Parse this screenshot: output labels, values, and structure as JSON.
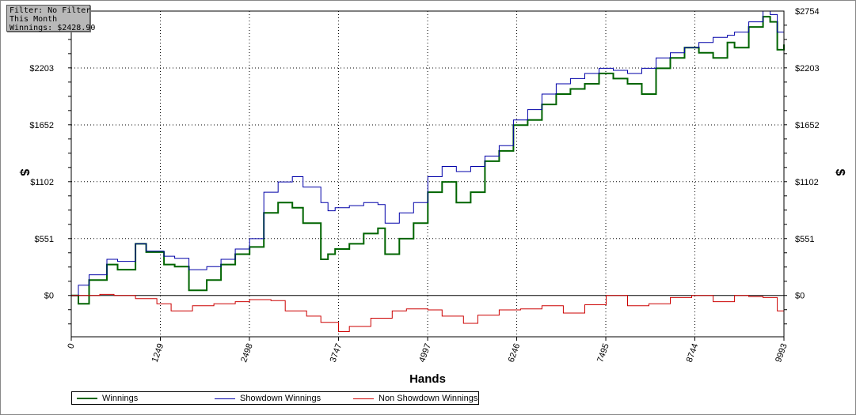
{
  "filter_box": {
    "line1": "Filter: No Filter",
    "line2": "This Month",
    "line3": "Winnings: $2428.90"
  },
  "chart_data": {
    "type": "line",
    "xlabel": "Hands",
    "ylabel_left": "$",
    "ylabel_right": "$",
    "xlim": [
      0,
      9993
    ],
    "ylim": [
      -400,
      2754
    ],
    "x_ticks": [
      0,
      1249,
      2498,
      3747,
      4997,
      6246,
      7495,
      8744,
      9993
    ],
    "y_ticks": [
      0,
      551,
      1102,
      1652,
      2203,
      2754
    ],
    "y_tick_labels_left": [
      "$0",
      "$551",
      "$1102",
      "$1652",
      "$2203",
      ""
    ],
    "y_tick_labels_right": [
      "$0",
      "$551",
      "$1102",
      "$1652",
      "$2203",
      "$2754"
    ],
    "grid": true,
    "legend_position": "bottom-left",
    "series": [
      {
        "name": "Winnings",
        "color": "#006400",
        "width": 2,
        "x": [
          0,
          100,
          250,
          500,
          650,
          900,
          1050,
          1300,
          1450,
          1650,
          1900,
          2100,
          2300,
          2500,
          2700,
          2900,
          3100,
          3250,
          3500,
          3600,
          3700,
          3900,
          4100,
          4300,
          4400,
          4600,
          4800,
          5000,
          5200,
          5400,
          5600,
          5800,
          6000,
          6200,
          6400,
          6600,
          6800,
          7000,
          7200,
          7400,
          7600,
          7800,
          8000,
          8200,
          8400,
          8600,
          8800,
          9000,
          9200,
          9300,
          9500,
          9700,
          9800,
          9900,
          9993
        ],
        "y": [
          0,
          -80,
          150,
          300,
          250,
          500,
          420,
          300,
          280,
          50,
          150,
          300,
          400,
          470,
          800,
          900,
          850,
          700,
          350,
          400,
          450,
          500,
          600,
          650,
          400,
          550,
          700,
          1000,
          1100,
          900,
          1000,
          1300,
          1400,
          1650,
          1700,
          1850,
          1950,
          2000,
          2050,
          2150,
          2100,
          2050,
          1950,
          2200,
          2300,
          2400,
          2350,
          2300,
          2450,
          2400,
          2600,
          2700,
          2650,
          2380,
          2430
        ]
      },
      {
        "name": "Showdown Winnings",
        "color": "#0000a8",
        "width": 1,
        "x": [
          0,
          100,
          250,
          500,
          650,
          900,
          1050,
          1300,
          1450,
          1650,
          1900,
          2100,
          2300,
          2500,
          2700,
          2900,
          3100,
          3250,
          3500,
          3600,
          3700,
          3900,
          4100,
          4300,
          4400,
          4600,
          4800,
          5000,
          5200,
          5400,
          5600,
          5800,
          6000,
          6200,
          6400,
          6600,
          6800,
          7000,
          7200,
          7400,
          7600,
          7800,
          8000,
          8200,
          8400,
          8600,
          8800,
          9000,
          9200,
          9300,
          9500,
          9700,
          9800,
          9900,
          9993
        ],
        "y": [
          0,
          100,
          200,
          350,
          330,
          500,
          430,
          380,
          360,
          250,
          280,
          350,
          450,
          550,
          1000,
          1100,
          1150,
          1050,
          900,
          820,
          850,
          870,
          900,
          880,
          700,
          800,
          900,
          1150,
          1250,
          1200,
          1250,
          1350,
          1450,
          1700,
          1800,
          1950,
          2050,
          2100,
          2150,
          2200,
          2180,
          2150,
          2200,
          2300,
          2350,
          2400,
          2450,
          2500,
          2520,
          2550,
          2650,
          2754,
          2720,
          2550,
          2600
        ]
      },
      {
        "name": "Non Showdown Winnings",
        "color": "#cc0000",
        "width": 1,
        "x": [
          0,
          200,
          400,
          600,
          900,
          1200,
          1400,
          1700,
          2000,
          2300,
          2500,
          2800,
          3000,
          3300,
          3500,
          3747,
          3900,
          4200,
          4500,
          4700,
          5000,
          5200,
          5500,
          5700,
          6000,
          6300,
          6600,
          6900,
          7200,
          7500,
          7800,
          8100,
          8400,
          8700,
          9000,
          9300,
          9500,
          9700,
          9900,
          9993
        ],
        "y": [
          0,
          0,
          10,
          0,
          -30,
          -80,
          -150,
          -100,
          -80,
          -60,
          -40,
          -50,
          -150,
          -200,
          -260,
          -350,
          -300,
          -220,
          -150,
          -130,
          -140,
          -200,
          -270,
          -190,
          -140,
          -130,
          -100,
          -170,
          -90,
          0,
          -100,
          -80,
          -20,
          0,
          -60,
          0,
          -10,
          -20,
          -150,
          -130
        ]
      }
    ]
  }
}
